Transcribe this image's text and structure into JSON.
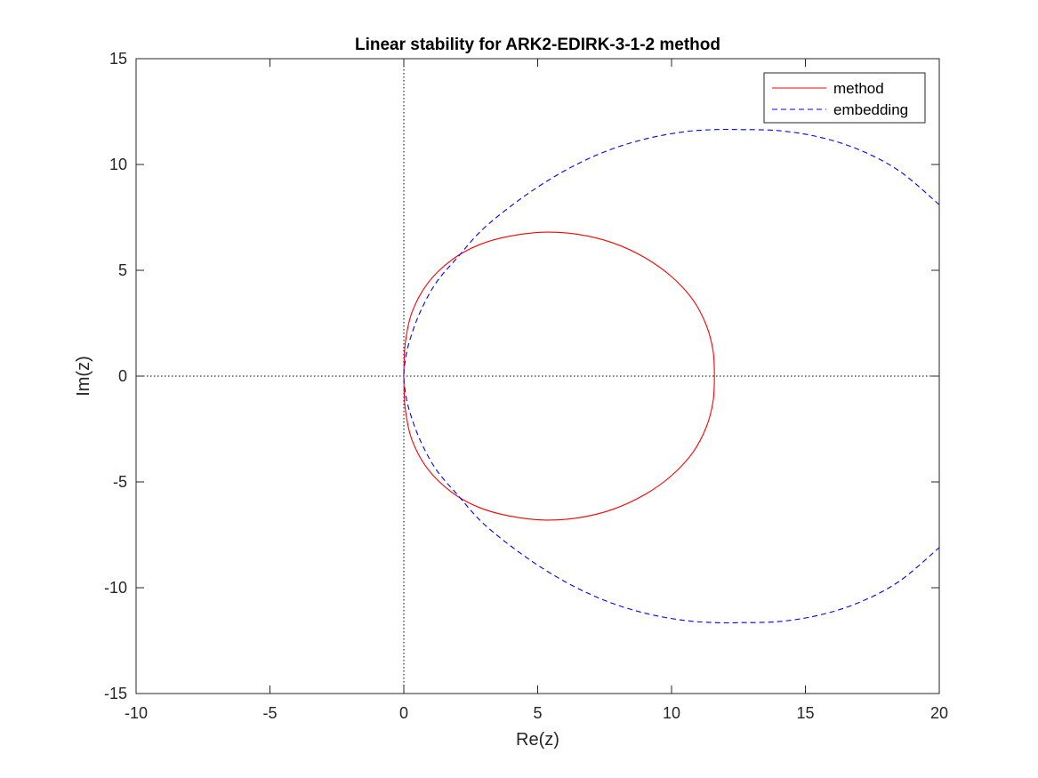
{
  "chart_data": {
    "type": "line",
    "title": "Linear stability for ARK2-EDIRK-3-1-2 method",
    "xlabel": "Re(z)",
    "ylabel": "Im(z)",
    "xlim": [
      -10,
      20
    ],
    "ylim": [
      -15,
      15
    ],
    "xticks": [
      -10,
      -5,
      0,
      5,
      10,
      15,
      20
    ],
    "yticks": [
      -15,
      -10,
      -5,
      0,
      5,
      10,
      15
    ],
    "xtick_labels": [
      "-10",
      "-5",
      "0",
      "5",
      "10",
      "15",
      "20"
    ],
    "ytick_labels": [
      "-15",
      "-10",
      "-5",
      "0",
      "5",
      "10",
      "15"
    ],
    "grid": false,
    "axis_lines": {
      "x_axis_dotted": true,
      "y_axis_dotted": true
    },
    "legend": {
      "location": "top-right"
    },
    "series": [
      {
        "name": "method",
        "color": "#ff0000",
        "style": "solid",
        "x": [
          0.0,
          0.05,
          0.3,
          0.9,
          1.8,
          2.8,
          3.9,
          5.2,
          6.5,
          7.8,
          9.0,
          10.0,
          10.8,
          11.3,
          11.55,
          11.6,
          11.55,
          11.3,
          10.8,
          10.0,
          9.0,
          7.8,
          6.5,
          5.2,
          3.9,
          2.8,
          1.8,
          0.9,
          0.3,
          0.05,
          0.0
        ],
        "y": [
          0.0,
          1.5,
          3.0,
          4.4,
          5.5,
          6.2,
          6.6,
          6.8,
          6.7,
          6.3,
          5.6,
          4.7,
          3.6,
          2.4,
          1.2,
          0.0,
          -1.2,
          -2.4,
          -3.6,
          -4.7,
          -5.6,
          -6.3,
          -6.7,
          -6.8,
          -6.6,
          -6.2,
          -5.5,
          -4.4,
          -3.0,
          -1.5,
          0.0
        ]
      },
      {
        "name": "embedding",
        "color": "#0000ff",
        "style": "dashed",
        "x": [
          20.0,
          18.5,
          17.0,
          15.5,
          14.0,
          12.5,
          11.7,
          10.5,
          9.0,
          7.5,
          6.0,
          4.5,
          3.0,
          2.0,
          1.2,
          0.6,
          0.2,
          0.05,
          0.0,
          0.05,
          0.2,
          0.6,
          1.2,
          2.0,
          3.0,
          4.5,
          6.0,
          7.5,
          9.0,
          10.5,
          11.7,
          12.5,
          14.0,
          15.5,
          17.0,
          18.5,
          20.0
        ],
        "y": [
          8.1,
          9.7,
          10.7,
          11.3,
          11.6,
          11.65,
          11.65,
          11.55,
          11.2,
          10.6,
          9.7,
          8.5,
          7.0,
          5.6,
          4.4,
          3.0,
          1.6,
          0.7,
          0.0,
          -0.7,
          -1.6,
          -3.0,
          -4.4,
          -5.6,
          -7.0,
          -8.5,
          -9.7,
          -10.6,
          -11.2,
          -11.55,
          -11.65,
          -11.65,
          -11.6,
          -11.3,
          -10.7,
          -9.7,
          -8.1
        ]
      }
    ]
  }
}
